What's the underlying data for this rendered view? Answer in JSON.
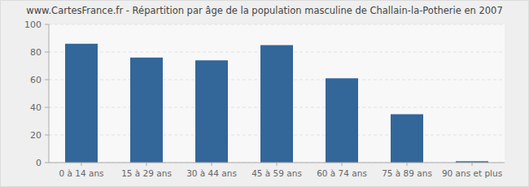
{
  "chart_data": {
    "type": "bar",
    "title": "www.CartesFrance.fr - Répartition par âge de la population masculine de Challain-la-Potherie en 2007",
    "categories": [
      "0 à 14 ans",
      "15 à 29 ans",
      "30 à 44 ans",
      "45 à 59 ans",
      "60 à 74 ans",
      "75 à 89 ans",
      "90 ans et plus"
    ],
    "values": [
      86,
      76,
      74,
      85,
      61,
      35,
      1
    ],
    "color": "#336699",
    "ylim": [
      0,
      100
    ],
    "yticks": [
      0,
      20,
      40,
      60,
      80,
      100
    ],
    "grid": true
  }
}
